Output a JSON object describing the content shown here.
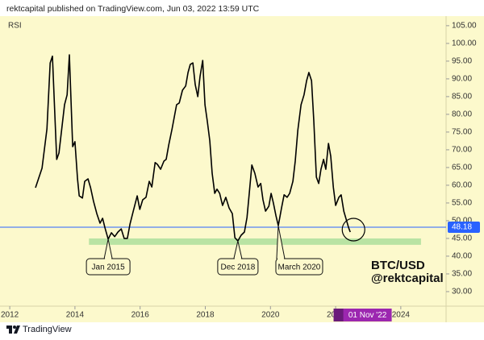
{
  "header": "rektcapital published on TradingView.com, Jun 03, 2022 13:59 UTC",
  "footer": "TradingView",
  "chart_data": {
    "type": "line",
    "background": "#fcf9cc",
    "series": [
      {
        "name": "RSI",
        "color": "#000000",
        "x": [
          2012.79,
          2012.99,
          2013.14,
          2013.24,
          2013.31,
          2013.39,
          2013.44,
          2013.51,
          2013.68,
          2013.76,
          2013.83,
          2013.93,
          2014.0,
          2014.08,
          2014.13,
          2014.23,
          2014.3,
          2014.4,
          2014.48,
          2014.57,
          2014.67,
          2014.77,
          2014.85,
          2014.92,
          2015.02,
          2015.12,
          2015.22,
          2015.32,
          2015.42,
          2015.51,
          2015.61,
          2015.69,
          2015.79,
          2015.91,
          2015.99,
          2016.08,
          2016.18,
          2016.28,
          2016.36,
          2016.46,
          2016.53,
          2016.63,
          2016.73,
          2016.8,
          2016.88,
          2016.98,
          2017.05,
          2017.12,
          2017.2,
          2017.3,
          2017.4,
          2017.47,
          2017.54,
          2017.62,
          2017.69,
          2017.77,
          2017.84,
          2017.92,
          2017.99,
          2018.06,
          2018.14,
          2018.21,
          2018.29,
          2018.36,
          2018.44,
          2018.53,
          2018.63,
          2018.73,
          2018.83,
          2018.91,
          2019.0,
          2019.1,
          2019.2,
          2019.28,
          2019.35,
          2019.43,
          2019.52,
          2019.62,
          2019.7,
          2019.77,
          2019.85,
          2019.95,
          2020.02,
          2020.09,
          2020.17,
          2020.24,
          2020.34,
          2020.42,
          2020.51,
          2020.59,
          2020.69,
          2020.76,
          2020.84,
          2020.94,
          2021.03,
          2021.11,
          2021.18,
          2021.26,
          2021.33,
          2021.41,
          2021.48,
          2021.55,
          2021.63,
          2021.7,
          2021.78,
          2021.85,
          2021.93,
          2022.0,
          2022.1,
          2022.17,
          2022.25,
          2022.32,
          2022.4,
          2022.45
        ],
        "values": [
          59.3,
          64.8,
          75.9,
          94.5,
          96.4,
          78.2,
          67.3,
          69.1,
          82.7,
          85.5,
          96.8,
          70.9,
          72.3,
          61.8,
          57.0,
          56.4,
          61.1,
          61.8,
          59.3,
          55.5,
          52.0,
          49.3,
          50.7,
          48.0,
          44.8,
          46.6,
          45.5,
          46.8,
          47.7,
          45.0,
          45.0,
          49.1,
          52.7,
          57.0,
          53.2,
          55.9,
          56.6,
          61.1,
          59.5,
          66.4,
          65.9,
          64.5,
          66.8,
          67.3,
          71.4,
          75.9,
          79.3,
          82.7,
          83.2,
          86.8,
          88.0,
          91.8,
          94.1,
          94.5,
          88.4,
          85.0,
          90.7,
          95.2,
          82.7,
          78.2,
          72.5,
          63.4,
          57.7,
          58.9,
          57.7,
          54.3,
          56.6,
          53.6,
          52.0,
          45.2,
          44.3,
          45.9,
          46.8,
          50.9,
          57.7,
          65.7,
          63.4,
          59.5,
          60.5,
          55.9,
          52.7,
          54.1,
          57.7,
          55.0,
          51.4,
          48.6,
          53.6,
          57.3,
          56.6,
          57.7,
          61.1,
          66.8,
          75.5,
          82.7,
          85.5,
          89.5,
          91.8,
          89.5,
          78.2,
          62.3,
          60.5,
          64.5,
          67.3,
          64.5,
          71.8,
          68.2,
          59.5,
          54.3,
          56.6,
          57.3,
          52.7,
          50.5,
          48.0,
          46.8
        ]
      }
    ],
    "xlim": [
      2011.7,
      2025.39
    ],
    "xticks": [
      2012,
      2014,
      2016,
      2018,
      2020,
      2022,
      2024
    ],
    "ylim": [
      25.9,
      107.7
    ],
    "yticks": [
      {
        "value": 30,
        "label": "30.00"
      },
      {
        "value": 35,
        "label": "35.00"
      },
      {
        "value": 40,
        "label": "40.00"
      },
      {
        "value": 45,
        "label": "45.00"
      },
      {
        "value": 50,
        "label": "50.00"
      },
      {
        "value": 55,
        "label": "55.00"
      },
      {
        "value": 60,
        "label": "60.00"
      },
      {
        "value": 65,
        "label": "65.00"
      },
      {
        "value": 70,
        "label": "70.00"
      },
      {
        "value": 75,
        "label": "75.00"
      },
      {
        "value": 80,
        "label": "80.00"
      },
      {
        "value": 85,
        "label": "85.00"
      },
      {
        "value": 90,
        "label": "90.00"
      },
      {
        "value": 95,
        "label": "95.00"
      },
      {
        "value": 100,
        "label": "100.00"
      },
      {
        "value": 105,
        "label": "105.00"
      }
    ],
    "price_line": {
      "value": 48.18,
      "color": "#2962ff"
    },
    "band": {
      "xmin": 2014.43,
      "xmax": 2024.62,
      "ymin": 43.2,
      "ymax": 45.0,
      "color": "#b9e3a3"
    },
    "annotations": [
      {
        "text": "Jan 2015",
        "x": 2015.02,
        "y": 44.8
      },
      {
        "text": "Dec 2018",
        "x": 2019.0,
        "y": 44.3
      },
      {
        "text": "March 2020",
        "x": 2020.24,
        "y": 48.6
      }
    ],
    "watermark": [
      "BTC/USD",
      "@rektcapital"
    ],
    "cursor": {
      "x": 2022.83,
      "label": "01 Nov '22",
      "color": "#9c27b0"
    }
  }
}
